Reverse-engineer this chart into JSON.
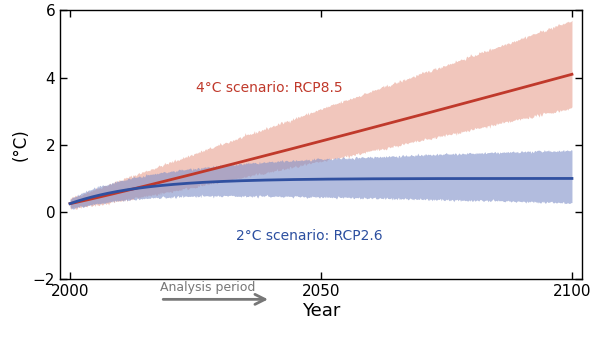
{
  "x_start": 2000,
  "x_end": 2100,
  "ylim": [
    -2,
    6
  ],
  "xlim": [
    1998,
    2102
  ],
  "yticks": [
    -2,
    0,
    2,
    4,
    6
  ],
  "xticks": [
    2000,
    2050,
    2100
  ],
  "xlabel": "Year",
  "ylabel": "(°C)",
  "rcp85_color": "#c0392b",
  "rcp85_band_color": "#e8a090",
  "rcp26_color": "#3050a0",
  "rcp26_band_color": "#8090c8",
  "rcp85_label": "4°C scenario: RCP8.5",
  "rcp26_label": "2°C scenario: RCP2.6",
  "arrow_label": "Analysis period",
  "arrow_color": "#777777",
  "bg_color": "#ffffff",
  "text_color_85": "#c0392b",
  "text_color_26": "#2c4fa0"
}
